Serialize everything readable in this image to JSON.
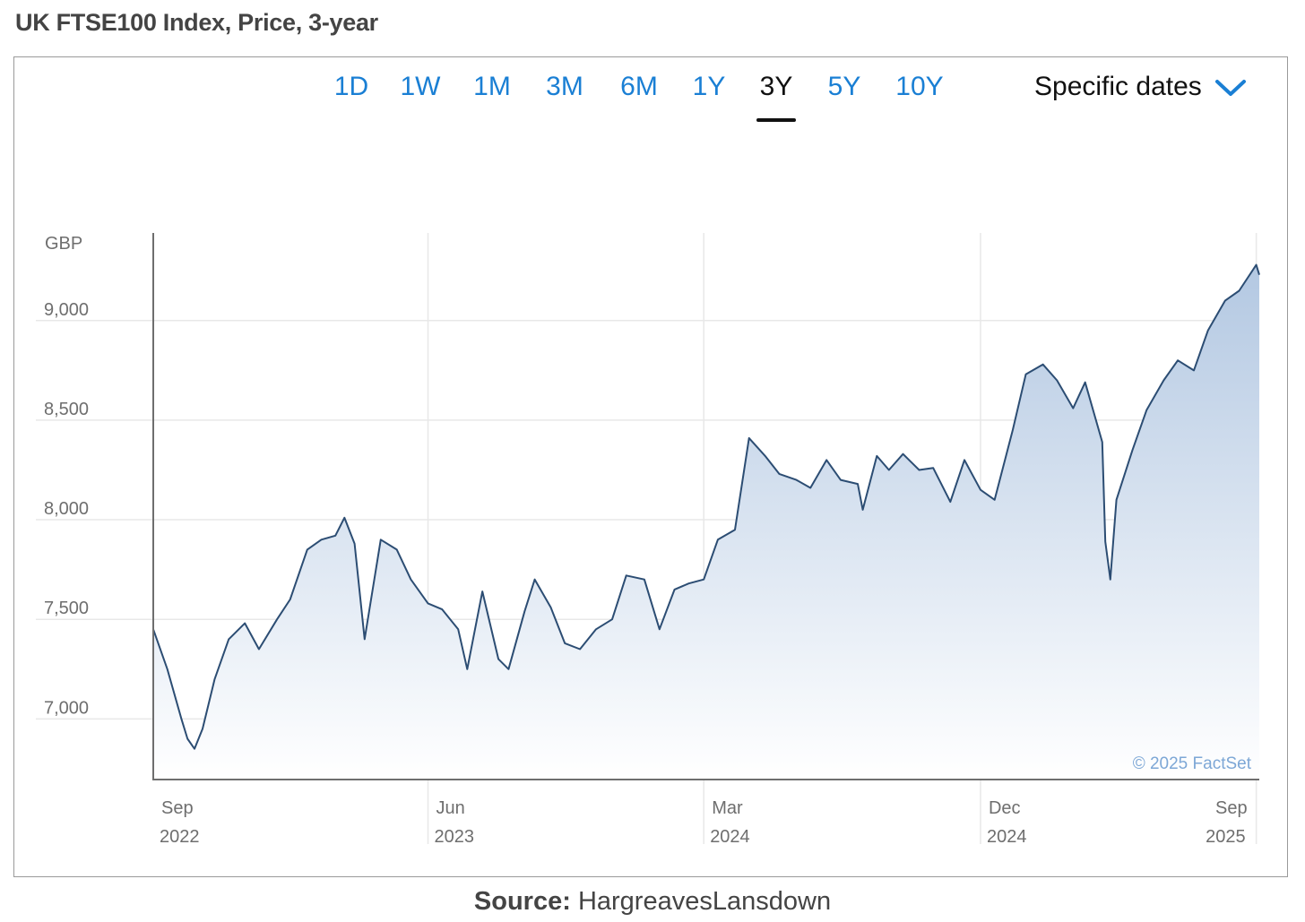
{
  "heading": "UK FTSE100 Index, Price, 3-year",
  "range_tabs": [
    "1D",
    "1W",
    "1M",
    "3M",
    "6M",
    "1Y",
    "3Y",
    "5Y",
    "10Y"
  ],
  "active_range": "3Y",
  "dates_dropdown": {
    "label": "Specific dates",
    "icon": "chevron-down-icon"
  },
  "source": {
    "label": "Source:",
    "value": "HargreavesLansdown"
  },
  "colors": {
    "line": "#2c4d73",
    "fill_top": "#b3c8e2",
    "fill_bottom": "#ffffff",
    "tab": "#1a7fd4",
    "grid": "#e8e8e8",
    "axis": "#6e6e6e",
    "watermark": "#7da7d6"
  },
  "chart_data": {
    "type": "area",
    "title": "",
    "xlabel": "",
    "ylabel": "GBP",
    "x_ticks": [
      {
        "label": "Sep",
        "year": "2022",
        "date": "2022-09-01"
      },
      {
        "label": "Jun",
        "year": "2023",
        "date": "2023-06-01"
      },
      {
        "label": "Mar",
        "year": "2024",
        "date": "2024-03-01"
      },
      {
        "label": "Dec",
        "year": "2024",
        "date": "2024-12-01"
      },
      {
        "label": "Sep",
        "year": "2025",
        "date": "2025-09-01"
      }
    ],
    "y_ticks": [
      7000,
      7500,
      8000,
      8500,
      9000
    ],
    "y_tick_labels": [
      "7,000",
      "7,500",
      "8,000",
      "8,500",
      "9,000"
    ],
    "xlim": [
      "2022-09-01",
      "2025-09-04"
    ],
    "ylim": [
      6700,
      9440
    ],
    "grid": true,
    "watermark": "© 2025 FactSet",
    "series": [
      {
        "x": [
          "2022-09-01",
          "2022-09-15",
          "2022-09-29",
          "2022-10-05",
          "2022-10-12",
          "2022-10-20",
          "2022-11-01",
          "2022-11-15",
          "2022-12-01",
          "2022-12-15",
          "2023-01-02",
          "2023-01-15",
          "2023-02-01",
          "2023-02-15",
          "2023-03-01",
          "2023-03-10",
          "2023-03-20",
          "2023-03-30",
          "2023-04-15",
          "2023-05-01",
          "2023-05-15",
          "2023-06-01",
          "2023-06-15",
          "2023-07-01",
          "2023-07-10",
          "2023-07-25",
          "2023-08-10",
          "2023-08-20",
          "2023-09-05",
          "2023-09-15",
          "2023-10-01",
          "2023-10-15",
          "2023-10-30",
          "2023-11-15",
          "2023-12-01",
          "2023-12-15",
          "2024-01-02",
          "2024-01-17",
          "2024-02-01",
          "2024-02-15",
          "2024-03-01",
          "2024-03-15",
          "2024-04-01",
          "2024-04-15",
          "2024-05-01",
          "2024-05-15",
          "2024-06-01",
          "2024-06-15",
          "2024-07-01",
          "2024-07-15",
          "2024-08-01",
          "2024-08-06",
          "2024-08-20",
          "2024-09-01",
          "2024-09-15",
          "2024-10-01",
          "2024-10-15",
          "2024-11-01",
          "2024-11-15",
          "2024-12-01",
          "2024-12-15",
          "2025-01-02",
          "2025-01-15",
          "2025-02-01",
          "2025-02-15",
          "2025-03-03",
          "2025-03-15",
          "2025-04-01",
          "2025-04-04",
          "2025-04-09",
          "2025-04-15",
          "2025-05-01",
          "2025-05-15",
          "2025-06-01",
          "2025-06-15",
          "2025-07-01",
          "2025-07-15",
          "2025-08-01",
          "2025-08-15",
          "2025-09-01",
          "2025-09-04"
        ],
        "values": [
          7450,
          7250,
          7000,
          6900,
          6850,
          6950,
          7200,
          7400,
          7480,
          7350,
          7500,
          7600,
          7850,
          7900,
          7920,
          8010,
          7880,
          7400,
          7900,
          7850,
          7700,
          7580,
          7550,
          7450,
          7250,
          7640,
          7300,
          7250,
          7540,
          7700,
          7560,
          7380,
          7350,
          7450,
          7500,
          7720,
          7700,
          7450,
          7650,
          7680,
          7700,
          7900,
          7950,
          8410,
          8320,
          8230,
          8200,
          8160,
          8300,
          8200,
          8180,
          8050,
          8320,
          8250,
          8330,
          8250,
          8260,
          8090,
          8300,
          8150,
          8100,
          8450,
          8730,
          8780,
          8700,
          8560,
          8690,
          8390,
          7890,
          7700,
          8100,
          8350,
          8550,
          8700,
          8800,
          8750,
          8950,
          9100,
          9150,
          9280,
          9230
        ]
      }
    ]
  }
}
